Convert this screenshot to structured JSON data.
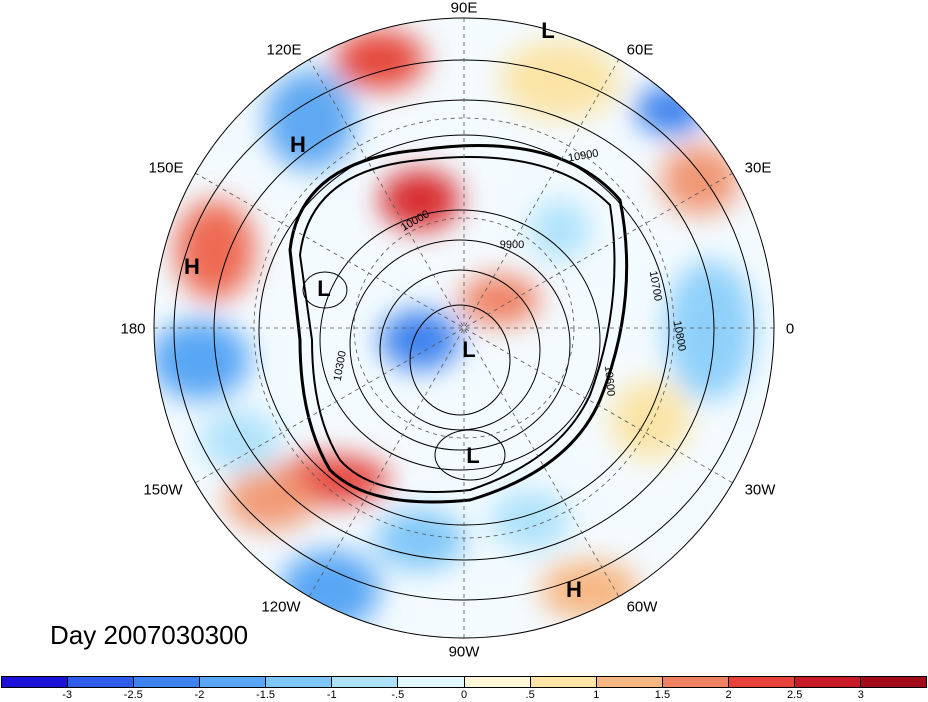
{
  "title": "Day 2007030300",
  "longitude_labels": [
    "90E",
    "60E",
    "30E",
    "0",
    "30W",
    "60W",
    "90W",
    "120W",
    "150W",
    "180",
    "150E",
    "120E"
  ],
  "pressure_systems": [
    {
      "label": "L",
      "region": "near 80E (Siberia)"
    },
    {
      "label": "H",
      "region": "NE Asia"
    },
    {
      "label": "H",
      "region": "N Pacific 170E"
    },
    {
      "label": "L",
      "region": "Bering Sea"
    },
    {
      "label": "L",
      "region": "Arctic"
    },
    {
      "label": "L",
      "region": "Hudson Bay"
    },
    {
      "label": "H",
      "region": "S America / W Atlantic"
    }
  ],
  "contour_labels": [
    "10900",
    "10800",
    "10700",
    "10600",
    "10300",
    "10000",
    "9900"
  ],
  "colorbar": {
    "ticks": [
      "-3",
      "-2.5",
      "-2",
      "-1.5",
      "-1",
      "-.5",
      "0",
      ".5",
      "1",
      "1.5",
      "2",
      "2.5",
      "3"
    ],
    "colors": [
      "#1a12d6",
      "#2e5ce8",
      "#3d82ee",
      "#58a6f4",
      "#7ec6f8",
      "#aee2fb",
      "#e2f6fd",
      "#fff8d8",
      "#fbe4a6",
      "#f6b783",
      "#ef8062",
      "#e6423a",
      "#c81a26",
      "#a30b1a"
    ]
  }
}
